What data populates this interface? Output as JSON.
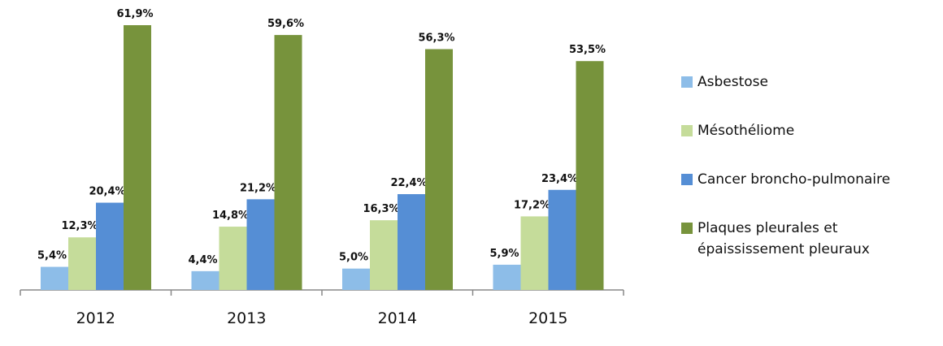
{
  "chart_data": {
    "type": "bar",
    "categories": [
      "2012",
      "2013",
      "2014",
      "2015"
    ],
    "series": [
      {
        "name": "Asbestose",
        "color": "#8dbde8",
        "values": [
          5.4,
          4.4,
          5.0,
          5.9
        ],
        "labels": [
          "5,4%",
          "4,4%",
          "5,0%",
          "5,9%"
        ]
      },
      {
        "name": "Mésothéliome",
        "color": "#c5dc9a",
        "values": [
          12.3,
          14.8,
          16.3,
          17.2
        ],
        "labels": [
          "12,3%",
          "14,8%",
          "16,3%",
          "17,2%"
        ]
      },
      {
        "name": "Cancer broncho-pulmonaire",
        "color": "#558ed5",
        "values": [
          20.4,
          21.2,
          22.4,
          23.4
        ],
        "labels": [
          "20,4%",
          "21,2%",
          "22,4%",
          "23,4%"
        ]
      },
      {
        "name": "Plaques pleurales et épaississement pleuraux",
        "color": "#77933c",
        "values": [
          61.9,
          59.6,
          56.3,
          53.5
        ],
        "labels": [
          "61,9%",
          "59,6%",
          "56,3%",
          "53,5%"
        ]
      }
    ],
    "ylim": [
      0,
      62
    ],
    "legend": "right",
    "grid": false
  },
  "legend_lines": [
    [
      "Asbestose"
    ],
    [
      "Mésothéliome"
    ],
    [
      "Cancer broncho-pulmonaire"
    ],
    [
      "Plaques pleurales et",
      "épaississement pleuraux"
    ]
  ]
}
